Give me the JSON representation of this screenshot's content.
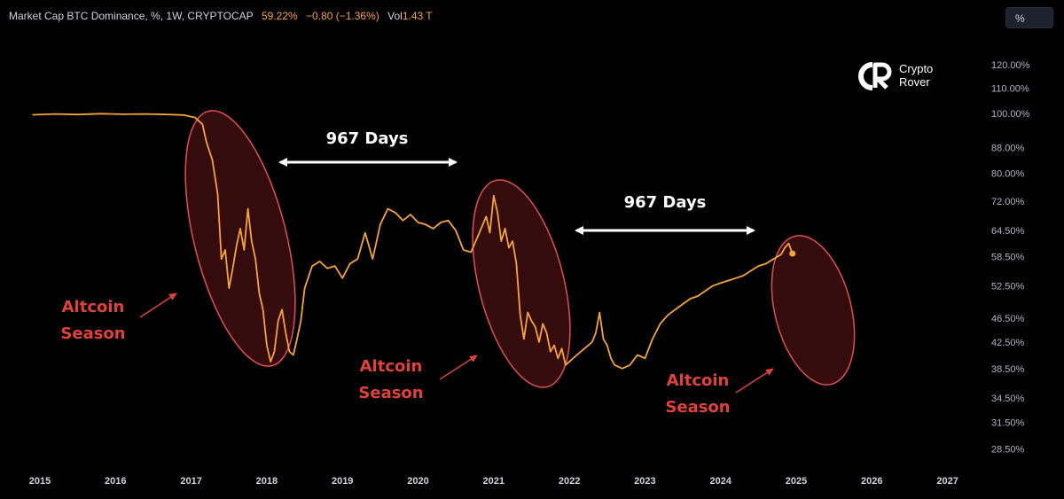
{
  "header": {
    "title": "Market Cap BTC Dominance, %, 1W, CRYPTOCAP",
    "last_value": "59.22%",
    "change": "−0.80 (−1.36%)",
    "volume_label": "Vol",
    "volume_value": "1.43 T"
  },
  "scale_button": {
    "label": "%"
  },
  "logo": {
    "line1": "Crypto",
    "line2": "Rover"
  },
  "colors": {
    "background": "#000000",
    "line": "#f7a33a",
    "ellipse_stroke": "#e05050",
    "ellipse_fill": "#3a0d0f",
    "season_text": "#e0413a",
    "arrow": "#ffffff"
  },
  "chart_data": {
    "type": "line",
    "title": "Market Cap BTC Dominance, %, 1W, CRYPTOCAP",
    "xlabel": "",
    "ylabel": "",
    "x_ticks": [
      "2015",
      "2016",
      "2017",
      "2018",
      "2019",
      "2020",
      "2021",
      "2022",
      "2023",
      "2024",
      "2025",
      "2026",
      "2027"
    ],
    "y_ticks": [
      "120.00%",
      "110.00%",
      "100.00%",
      "88.00%",
      "80.00%",
      "72.00%",
      "64.50%",
      "58.50%",
      "52.50%",
      "46.50%",
      "42.50%",
      "38.50%",
      "34.50%",
      "31.50%",
      "28.50%"
    ],
    "xlim": [
      2014.85,
      2027.5
    ],
    "y_scale": "log",
    "ylim": [
      26,
      135
    ],
    "series": [
      {
        "name": "BTC Dominance",
        "x": [
          2014.9,
          2015.2,
          2015.5,
          2015.8,
          2016.1,
          2016.4,
          2016.7,
          2016.9,
          2017.05,
          2017.15,
          2017.2,
          2017.28,
          2017.35,
          2017.4,
          2017.45,
          2017.5,
          2017.55,
          2017.6,
          2017.65,
          2017.7,
          2017.75,
          2017.8,
          2017.85,
          2017.9,
          2017.95,
          2018.0,
          2018.05,
          2018.1,
          2018.15,
          2018.2,
          2018.25,
          2018.3,
          2018.35,
          2018.4,
          2018.45,
          2018.5,
          2018.6,
          2018.7,
          2018.8,
          2018.9,
          2019.0,
          2019.1,
          2019.2,
          2019.3,
          2019.4,
          2019.5,
          2019.6,
          2019.7,
          2019.8,
          2019.9,
          2020.0,
          2020.1,
          2020.2,
          2020.3,
          2020.4,
          2020.5,
          2020.6,
          2020.7,
          2020.8,
          2020.9,
          2020.95,
          2021.0,
          2021.05,
          2021.1,
          2021.15,
          2021.2,
          2021.25,
          2021.3,
          2021.35,
          2021.4,
          2021.45,
          2021.5,
          2021.55,
          2021.6,
          2021.65,
          2021.7,
          2021.75,
          2021.8,
          2021.85,
          2021.9,
          2021.95,
          2022.0,
          2022.1,
          2022.2,
          2022.3,
          2022.35,
          2022.4,
          2022.45,
          2022.5,
          2022.55,
          2022.6,
          2022.7,
          2022.8,
          2022.9,
          2023.0,
          2023.1,
          2023.2,
          2023.3,
          2023.4,
          2023.5,
          2023.6,
          2023.7,
          2023.8,
          2023.9,
          2024.0,
          2024.1,
          2024.2,
          2024.3,
          2024.4,
          2024.5,
          2024.6,
          2024.7,
          2024.8,
          2024.85,
          2024.9,
          2024.95
        ],
        "values": [
          99.5,
          99.8,
          99.6,
          99.9,
          99.7,
          99.8,
          99.6,
          99.4,
          98.5,
          96.0,
          90.0,
          84.0,
          74.0,
          58.0,
          60.0,
          52.0,
          56.0,
          61.0,
          65.0,
          60.0,
          70.0,
          62.0,
          58.0,
          51.0,
          48.0,
          42.0,
          39.5,
          41.0,
          46.0,
          48.0,
          44.0,
          41.0,
          40.5,
          43.0,
          46.0,
          52.0,
          56.5,
          57.5,
          56.0,
          56.5,
          54.0,
          57.0,
          58.0,
          64.0,
          58.0,
          66.0,
          70.0,
          69.0,
          67.0,
          68.5,
          66.5,
          66.0,
          65.0,
          66.5,
          67.0,
          64.5,
          60.0,
          59.5,
          63.5,
          68.0,
          64.0,
          73.5,
          69.0,
          62.0,
          65.0,
          60.5,
          62.0,
          57.0,
          47.0,
          43.0,
          47.5,
          46.0,
          45.0,
          42.5,
          45.5,
          44.0,
          41.0,
          42.0,
          40.0,
          41.5,
          39.0,
          39.5,
          40.5,
          41.5,
          42.5,
          44.0,
          47.5,
          43.0,
          42.0,
          40.0,
          39.0,
          38.5,
          39.0,
          40.5,
          40.0,
          43.0,
          45.5,
          47.0,
          48.0,
          49.0,
          50.0,
          50.5,
          51.5,
          52.5,
          53.0,
          53.5,
          54.0,
          54.5,
          55.5,
          56.5,
          57.0,
          58.0,
          59.0,
          60.5,
          61.5,
          59.2
        ]
      }
    ],
    "annotations": [
      {
        "text": "967 Days",
        "type": "span",
        "from": 2018.15,
        "to": 2020.6
      },
      {
        "text": "967 Days",
        "type": "span",
        "from": 2022.1,
        "to": 2024.6
      },
      {
        "text_line1": "Altcoin",
        "text_line2": "Season",
        "region_center": 2017.7
      },
      {
        "text_line1": "Altcoin",
        "text_line2": "Season",
        "region_center": 2021.5
      },
      {
        "text_line1": "Altcoin",
        "text_line2": "Season",
        "region_center": 2025.1
      }
    ]
  }
}
